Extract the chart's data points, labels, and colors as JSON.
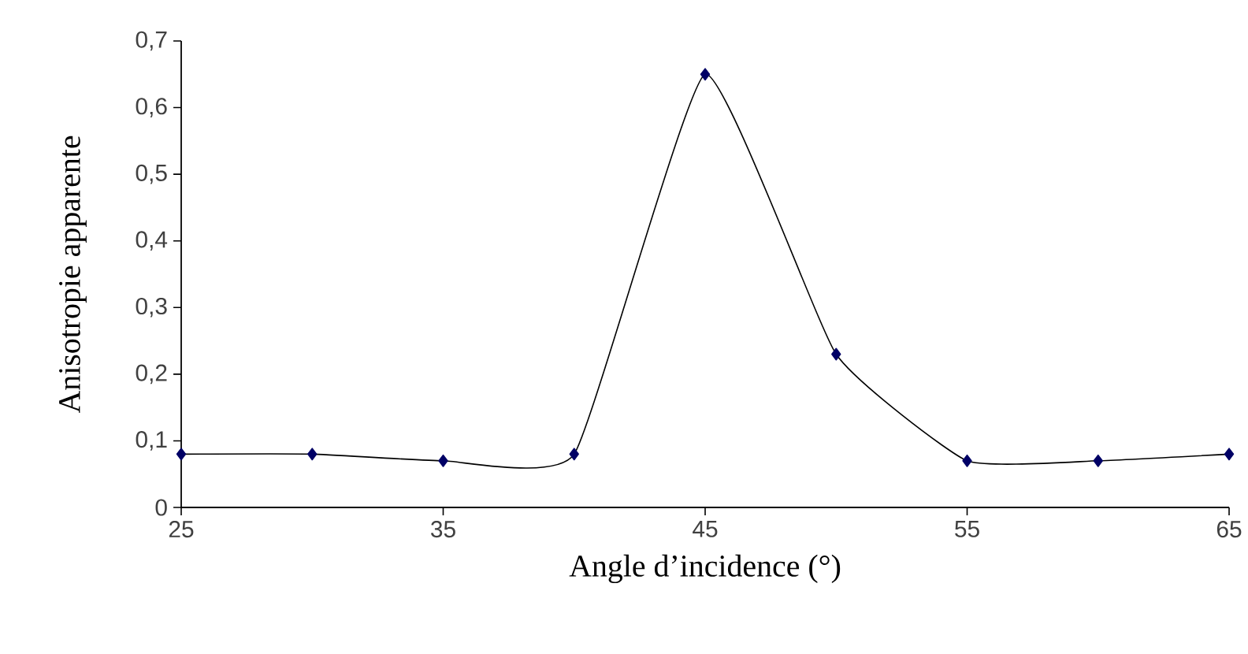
{
  "chart_data": {
    "type": "line",
    "xlabel": "Angle d’incidence (°)",
    "ylabel": "Anisotropie apparente",
    "x": [
      25,
      30,
      35,
      40,
      45,
      50,
      55,
      60,
      65
    ],
    "series": [
      {
        "color": "#000066",
        "values": [
          0.08,
          0.08,
          0.07,
          0.08,
          0.65,
          0.23,
          0.07,
          0.07,
          0.08
        ]
      }
    ],
    "xlim": [
      25,
      65
    ],
    "xticks": [
      25,
      35,
      45,
      55,
      65
    ],
    "ylim": [
      0,
      0.7
    ],
    "yticks": [
      {
        "value": 0,
        "label": "0"
      },
      {
        "value": 0.1,
        "label": "0,1"
      },
      {
        "value": 0.2,
        "label": "0,2"
      },
      {
        "value": 0.3,
        "label": "0,3"
      },
      {
        "value": 0.4,
        "label": "0,4"
      },
      {
        "value": 0.5,
        "label": "0,5"
      },
      {
        "value": 0.6,
        "label": "0,6"
      },
      {
        "value": 0.7,
        "label": "0,7"
      }
    ],
    "marker": "diamond",
    "line_style": "solid"
  }
}
